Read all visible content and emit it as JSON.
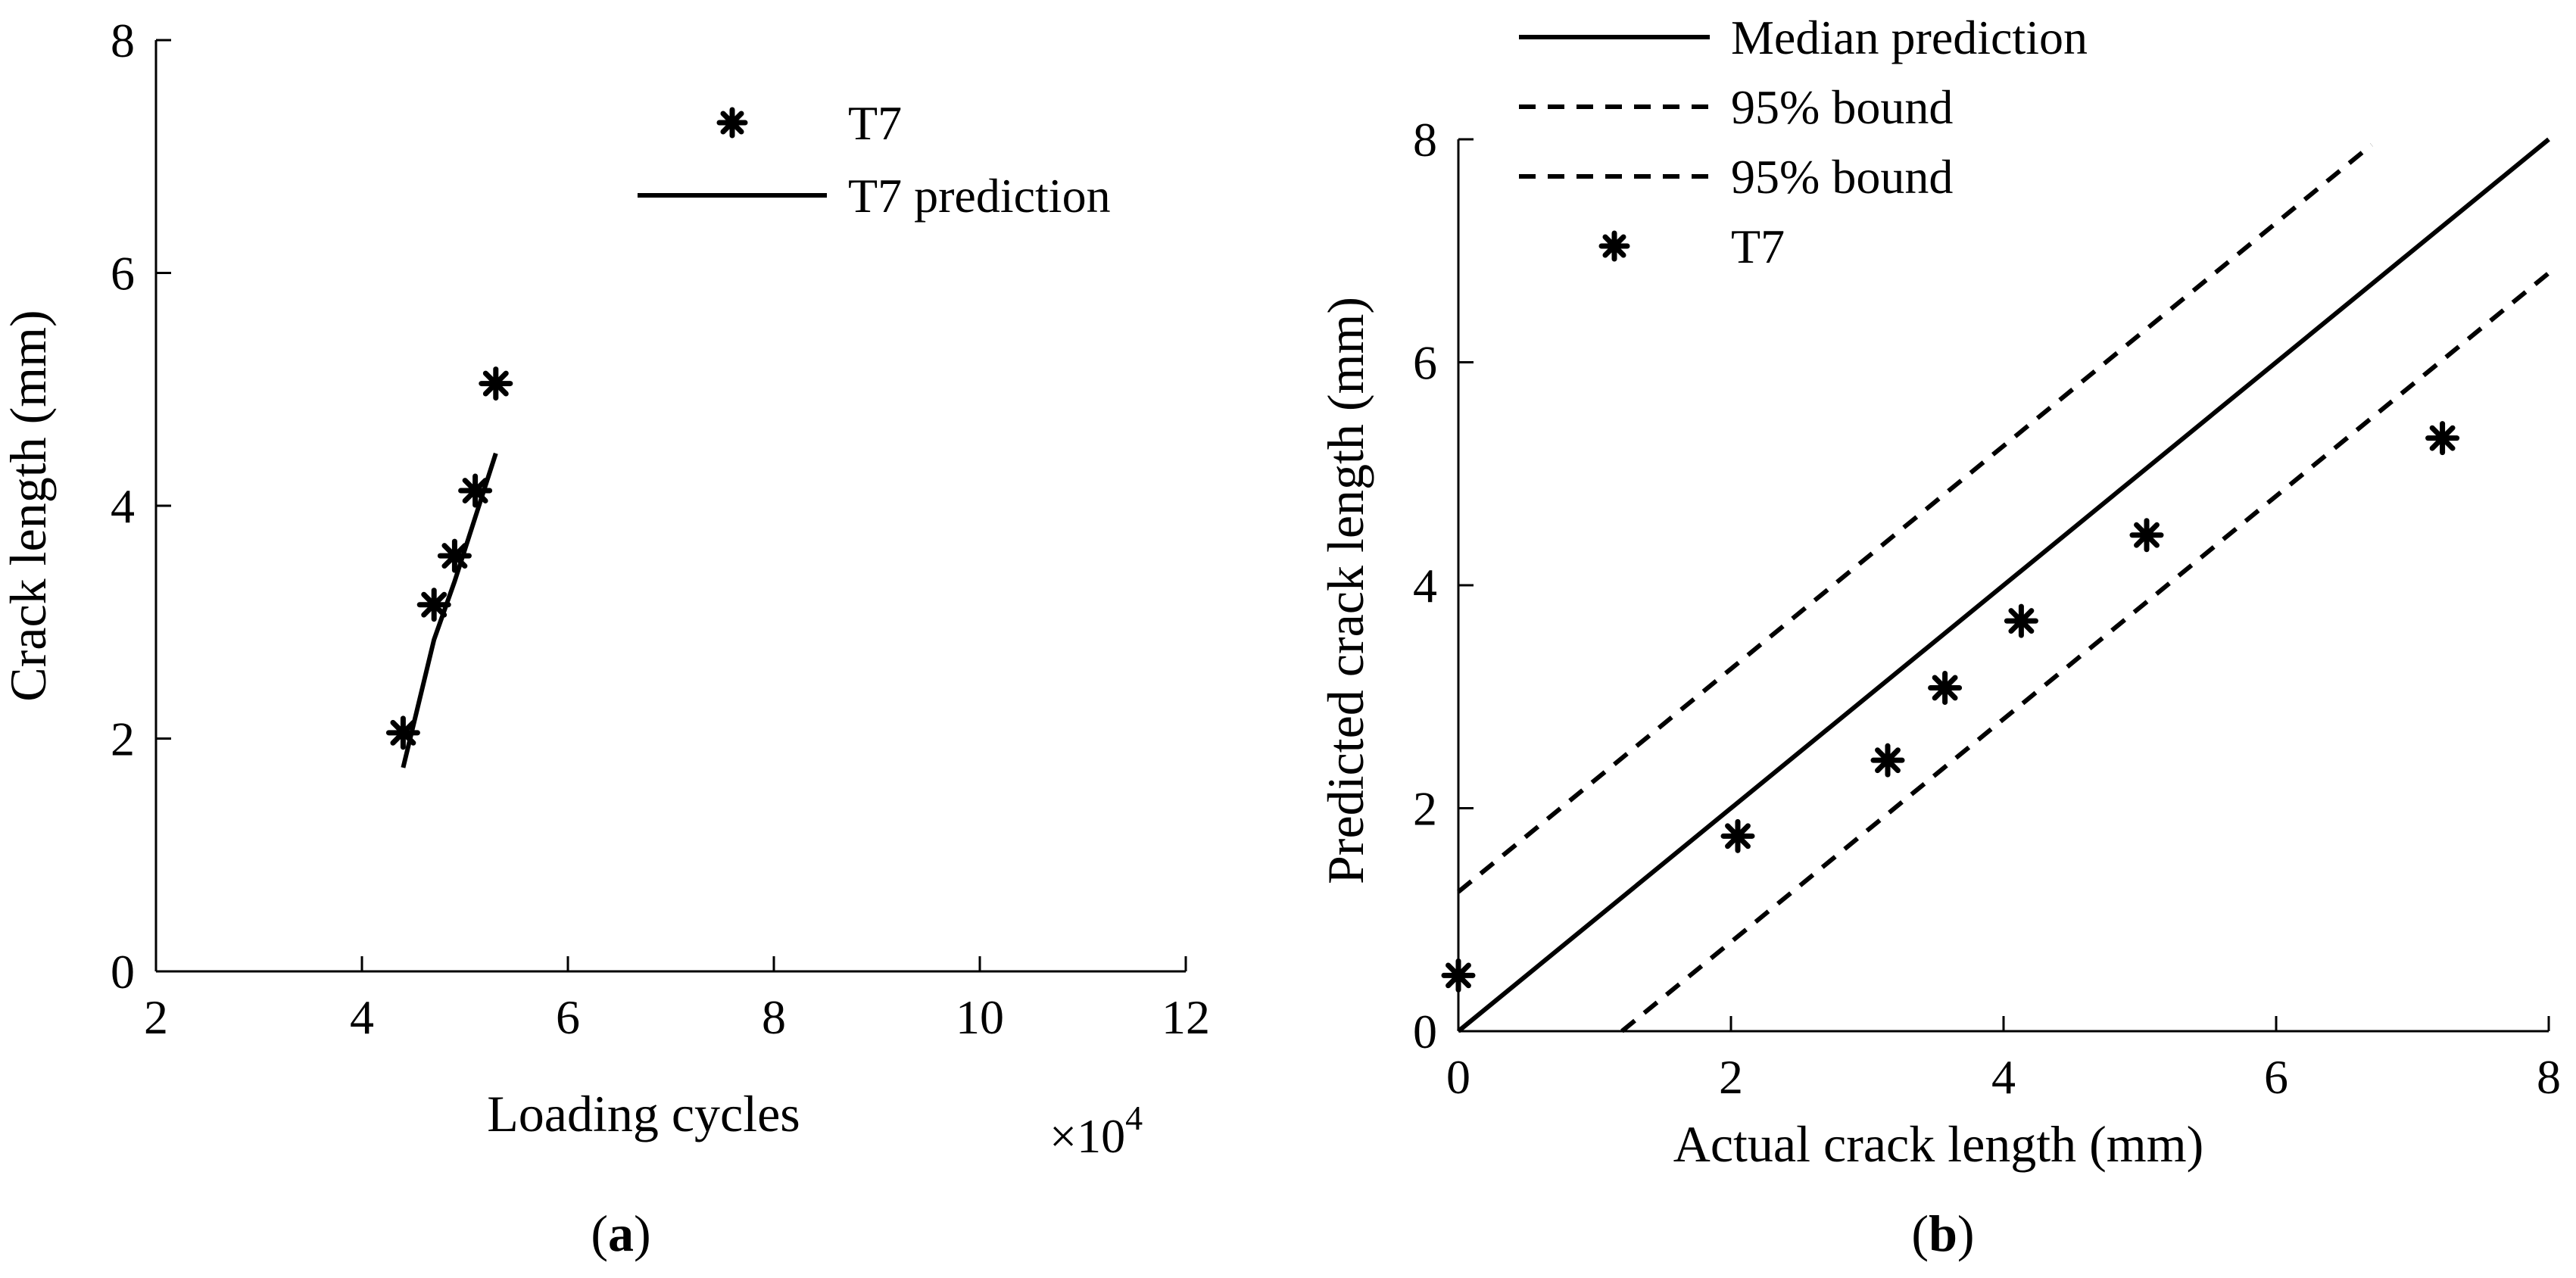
{
  "chart_data": [
    {
      "type": "line",
      "panel_label": "a",
      "xlabel": "Loading cycles",
      "ylabel": "Crack length (mm)",
      "x_multiplier_label": "×10",
      "x_multiplier_exponent": "4",
      "xlim": [
        2,
        12
      ],
      "ylim": [
        0,
        8
      ],
      "xticks": [
        2,
        4,
        6,
        8,
        10,
        12
      ],
      "yticks": [
        0,
        2,
        4,
        6,
        8
      ],
      "grid": false,
      "legend_position": "top-right",
      "series": [
        {
          "name": "T7",
          "kind": "scatter",
          "marker": "asterisk",
          "x": [
            4.4,
            4.7,
            4.9,
            5.1,
            5.3
          ],
          "y": [
            2.05,
            3.15,
            3.57,
            4.13,
            5.05
          ]
        },
        {
          "name": "T7 prediction",
          "kind": "line",
          "dash": "solid",
          "x": [
            4.4,
            4.55,
            4.7,
            4.9,
            5.1,
            5.3
          ],
          "y": [
            1.75,
            2.3,
            2.85,
            3.35,
            3.9,
            4.45
          ]
        }
      ]
    },
    {
      "type": "line",
      "panel_label": "b",
      "xlabel": "Actual crack length (mm)",
      "ylabel": "Predicted crack length (mm)",
      "xlim": [
        0,
        8
      ],
      "ylim": [
        0,
        8
      ],
      "xticks": [
        0,
        2,
        4,
        6,
        8
      ],
      "yticks": [
        0,
        2,
        4,
        6,
        8
      ],
      "grid": false,
      "legend_position": "top-left",
      "series": [
        {
          "name": "Median prediction",
          "kind": "line",
          "dash": "solid",
          "x": [
            0,
            8
          ],
          "y": [
            0,
            8
          ]
        },
        {
          "name": "95% bound",
          "kind": "line",
          "dash": "dashed",
          "x": [
            0,
            6.7
          ],
          "y": [
            1.25,
            7.95
          ]
        },
        {
          "name": "95% bound",
          "kind": "line",
          "dash": "dashed",
          "x": [
            1.2,
            8
          ],
          "y": [
            0,
            6.8
          ]
        },
        {
          "name": "T7",
          "kind": "scatter",
          "marker": "asterisk",
          "x": [
            0,
            2.05,
            3.15,
            3.57,
            4.13,
            5.05,
            7.22
          ],
          "y": [
            0.5,
            1.75,
            2.43,
            3.08,
            3.68,
            4.45,
            5.32
          ]
        }
      ]
    }
  ]
}
